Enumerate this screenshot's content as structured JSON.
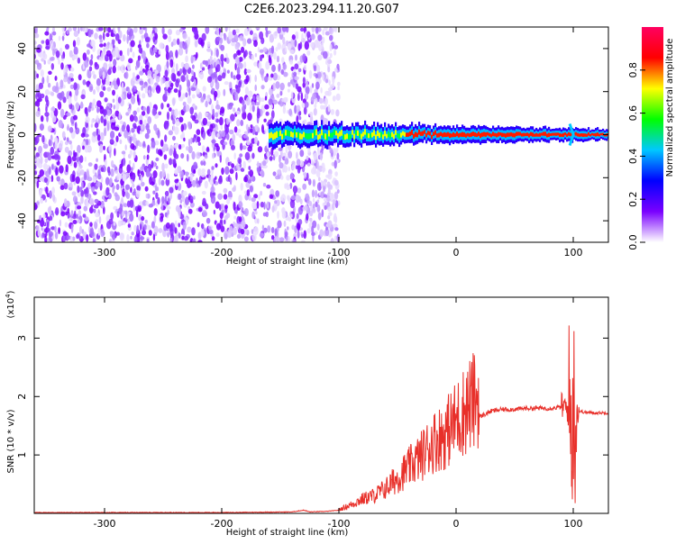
{
  "title": "C2E6.2023.294.11.20.G07",
  "chart_data": [
    {
      "type": "heatmap",
      "xlabel": "Height of straight line (km)",
      "ylabel": "Frequency (Hz)",
      "xlim": [
        -360,
        130
      ],
      "ylim": [
        -50,
        50
      ],
      "xticks": [
        -300,
        -200,
        -100,
        0,
        100
      ],
      "yticks": [
        -40,
        -20,
        0,
        20,
        40
      ],
      "colorbar": {
        "label": "Normalized spectral amplitude",
        "range": [
          0,
          1
        ],
        "ticks": [
          0.0,
          0.2,
          0.4,
          0.6,
          0.8
        ],
        "colormap": [
          "#ffffff",
          "#7a00ff",
          "#0000ff",
          "#00c8ff",
          "#00ff00",
          "#ffff00",
          "#ff0000",
          "#ff0060"
        ]
      },
      "features": {
        "noise_region_x": [
          -360,
          -100
        ],
        "signal_band_x": [
          -160,
          130
        ],
        "signal_center_y": 0,
        "signal_halfwidth_start": 5,
        "signal_halfwidth_end": 2,
        "noise_color": "#7a00ff",
        "signal_color": "#ff0000"
      }
    },
    {
      "type": "line",
      "xlabel": "Height of straight line (km)",
      "ylabel": "SNR (10 * v/v)",
      "yscale_label": "(x10",
      "yscale_exp": "4",
      "yscale_close": ")",
      "xlim": [
        -360,
        130
      ],
      "ylim": [
        0,
        3.7
      ],
      "xticks": [
        -300,
        -200,
        -100,
        0,
        100
      ],
      "yticks": [
        1,
        2,
        3
      ],
      "color": "#e8302a",
      "series": [
        {
          "x": [
            -360,
            -300,
            -200,
            -140,
            -130,
            -125,
            -110,
            -100,
            -90,
            -80,
            -70,
            -60,
            -50,
            -40,
            -30,
            -20,
            -10,
            0,
            10,
            20,
            30,
            40,
            50,
            60,
            70,
            80,
            90,
            95,
            98,
            100,
            102,
            105,
            110,
            120,
            130
          ],
          "values": [
            0.01,
            0.01,
            0.01,
            0.02,
            0.05,
            0.02,
            0.03,
            0.05,
            0.12,
            0.2,
            0.25,
            0.35,
            0.5,
            0.65,
            0.8,
            1.0,
            1.1,
            1.3,
            1.5,
            1.65,
            1.75,
            1.78,
            1.78,
            1.8,
            1.8,
            1.8,
            1.82,
            1.8,
            1.5,
            1.75,
            1.8,
            1.75,
            1.73,
            1.72,
            1.72
          ]
        }
      ]
    }
  ]
}
